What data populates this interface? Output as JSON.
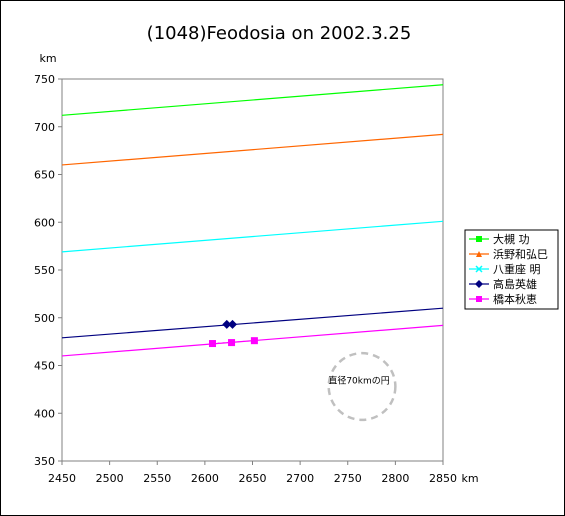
{
  "chart_data": {
    "type": "line",
    "title": "(1048)Feodosia on 2002.3.25",
    "xlabel": "km",
    "ylabel": "km",
    "xlim": [
      2450,
      2850
    ],
    "ylim": [
      350,
      750
    ],
    "xticks": [
      2450,
      2500,
      2550,
      2600,
      2650,
      2700,
      2750,
      2800,
      2850
    ],
    "yticks": [
      350,
      400,
      450,
      500,
      550,
      600,
      650,
      700,
      750
    ],
    "grid": false,
    "legend_position": "right",
    "series": [
      {
        "name": "大槻 功",
        "color": "#00ff00",
        "marker": "square",
        "x": [
          2450,
          2850
        ],
        "y": [
          712,
          744
        ]
      },
      {
        "name": "浜野和弘巳",
        "color": "#ff6600",
        "marker": "triangle",
        "x": [
          2450,
          2850
        ],
        "y": [
          660,
          692
        ]
      },
      {
        "name": "八重座 明",
        "color": "#00ffff",
        "marker": "x",
        "x": [
          2450,
          2850
        ],
        "y": [
          569,
          601
        ]
      },
      {
        "name": "高島英雄",
        "color": "#000080",
        "marker": "diamond",
        "x": [
          2450,
          2850
        ],
        "y": [
          479,
          510
        ],
        "points": [
          [
            2623,
            493
          ],
          [
            2629,
            493
          ]
        ]
      },
      {
        "name": "橋本秋恵",
        "color": "#ff00ff",
        "marker": "square",
        "x": [
          2450,
          2850
        ],
        "y": [
          460,
          492
        ],
        "points": [
          [
            2608,
            473
          ],
          [
            2628,
            474
          ],
          [
            2652,
            476
          ]
        ]
      }
    ],
    "annotations": [
      {
        "type": "circle",
        "label": "直径70kmの円",
        "center": [
          2765,
          428
        ],
        "diameter": 70,
        "color": "#c0c0c0",
        "dashed": true
      }
    ]
  }
}
